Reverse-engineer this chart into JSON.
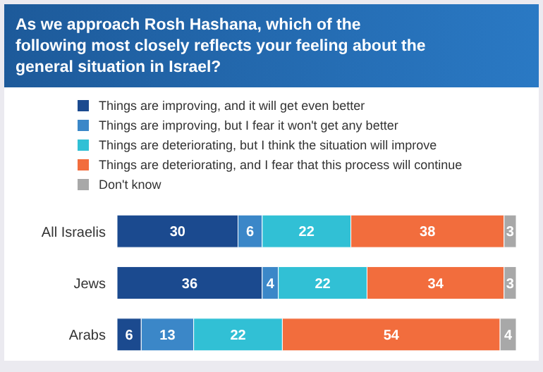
{
  "chart_data": {
    "type": "bar",
    "orientation": "horizontal",
    "stacked": true,
    "xlim": [
      0,
      99
    ],
    "tick_labels": false,
    "data_labels": true,
    "legend": "top",
    "grid": false,
    "title": "As we approach Rosh Hashana, which of the following most closely reflects your feeling about the general situation in Israel?",
    "categories": [
      "All Israelis",
      "Jews",
      "Arabs"
    ],
    "series": [
      {
        "name": "Things are improving, and it will get even better",
        "color": "#1b4a8f",
        "values": [
          30,
          36,
          6
        ]
      },
      {
        "name": "Things are improving, but I fear it won't get any better",
        "color": "#3b87c8",
        "values": [
          6,
          4,
          13
        ]
      },
      {
        "name": "Things are deteriorating, but I think the situation will improve",
        "color": "#31c0d5",
        "values": [
          22,
          22,
          22
        ]
      },
      {
        "name": "Things are deteriorating, and I fear that this process will continue",
        "color": "#f26d3d",
        "values": [
          38,
          34,
          54
        ]
      },
      {
        "name": "Don't know",
        "color": "#a8a8a8",
        "values": [
          3,
          3,
          4
        ]
      }
    ]
  }
}
